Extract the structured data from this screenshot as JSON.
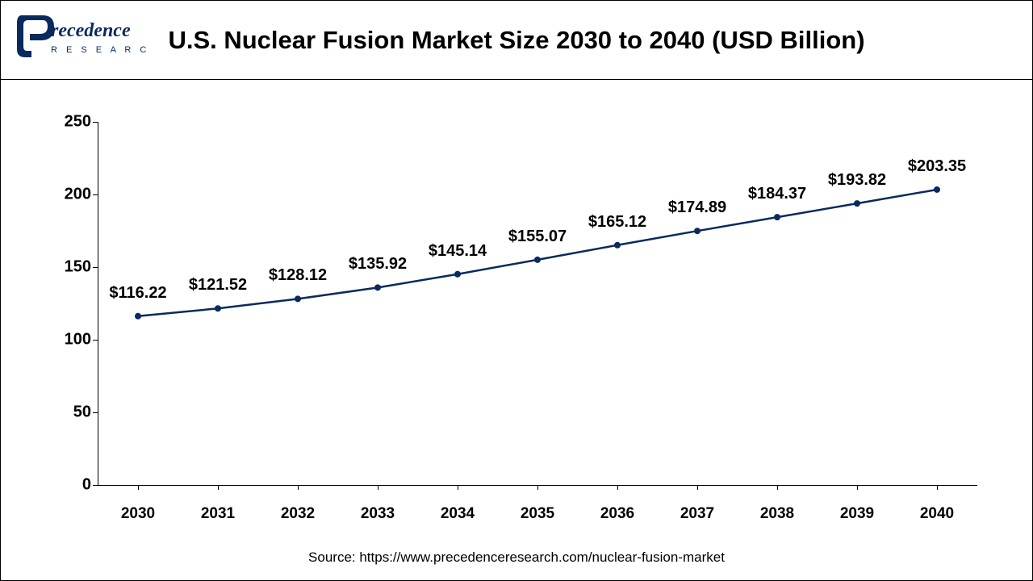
{
  "header": {
    "title": "U.S. Nuclear Fusion Market Size 2030 to 2040 (USD Billion)",
    "logo": {
      "color": "#0a2a5e",
      "text_top": "recedence",
      "text_bottom": "R E S E A R C H"
    }
  },
  "chart": {
    "type": "line",
    "line_color": "#0a2a5e",
    "line_width": 2.5,
    "marker_size": 4,
    "marker_color": "#0a2a5e",
    "background_color": "#ffffff",
    "border_color": "#000000",
    "y_axis": {
      "min": 0,
      "max": 250,
      "tick_step": 50,
      "ticks": [
        0,
        50,
        100,
        150,
        200,
        250
      ],
      "font_size": 20,
      "font_weight": "bold"
    },
    "x_axis": {
      "categories": [
        "2030",
        "2031",
        "2032",
        "2033",
        "2034",
        "2035",
        "2036",
        "2037",
        "2038",
        "2039",
        "2040"
      ],
      "font_size": 19,
      "font_weight": "bold"
    },
    "values": [
      116.22,
      121.52,
      128.12,
      135.92,
      145.14,
      155.07,
      165.12,
      174.89,
      184.37,
      193.82,
      203.35
    ],
    "data_labels": [
      "$116.22",
      "$121.52",
      "$128.12",
      "$135.92",
      "$145.14",
      "$155.07",
      "$165.12",
      "$174.89",
      "$184.37",
      "$193.82",
      "$203.35"
    ],
    "label_font_size": 20,
    "label_font_weight": "bold",
    "label_color": "#000000"
  },
  "footer": {
    "source": "Source: https://www.precedenceresearch.com/nuclear-fusion-market",
    "font_size": 17
  }
}
